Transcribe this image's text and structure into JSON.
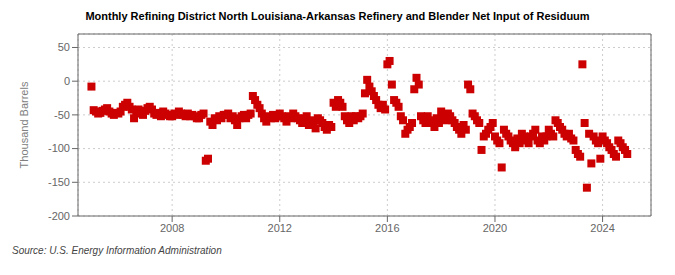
{
  "chart_data": {
    "type": "scatter",
    "title": "Monthly Refining District North Louisiana-Arkansas Refinery and Blender Net Input of Residuum",
    "ylabel": "Thousand Barrels",
    "source": "Source: U.S. Energy Information Administration",
    "color": "#cc0000",
    "marker": "square",
    "grid": true,
    "xlim": [
      2004.5,
      2025.8
    ],
    "xticks": [
      2008,
      2012,
      2016,
      2020,
      2024
    ],
    "ylim": [
      -200,
      70
    ],
    "yticks": [
      -200,
      -150,
      -100,
      -50,
      0,
      50
    ],
    "x": [
      2005.0,
      2005.083,
      2005.167,
      2005.25,
      2005.333,
      2005.417,
      2005.5,
      2005.583,
      2005.667,
      2005.75,
      2005.833,
      2005.917,
      2006.0,
      2006.083,
      2006.167,
      2006.25,
      2006.333,
      2006.417,
      2006.5,
      2006.583,
      2006.667,
      2006.75,
      2006.833,
      2006.917,
      2007.0,
      2007.083,
      2007.167,
      2007.25,
      2007.333,
      2007.417,
      2007.5,
      2007.583,
      2007.667,
      2007.75,
      2007.833,
      2007.917,
      2008.0,
      2008.083,
      2008.167,
      2008.25,
      2008.333,
      2008.417,
      2008.5,
      2008.583,
      2008.667,
      2008.75,
      2008.833,
      2008.917,
      2009.0,
      2009.083,
      2009.167,
      2009.25,
      2009.333,
      2009.417,
      2009.5,
      2009.583,
      2009.667,
      2009.75,
      2009.833,
      2009.917,
      2010.0,
      2010.083,
      2010.167,
      2010.25,
      2010.333,
      2010.417,
      2010.5,
      2010.583,
      2010.667,
      2010.75,
      2010.833,
      2010.917,
      2011.0,
      2011.083,
      2011.167,
      2011.25,
      2011.333,
      2011.417,
      2011.5,
      2011.583,
      2011.667,
      2011.75,
      2011.833,
      2011.917,
      2012.0,
      2012.083,
      2012.167,
      2012.25,
      2012.333,
      2012.417,
      2012.5,
      2012.583,
      2012.667,
      2012.75,
      2012.833,
      2012.917,
      2013.0,
      2013.083,
      2013.167,
      2013.25,
      2013.333,
      2013.417,
      2013.5,
      2013.583,
      2013.667,
      2013.75,
      2013.833,
      2013.917,
      2014.0,
      2014.083,
      2014.167,
      2014.25,
      2014.333,
      2014.417,
      2014.5,
      2014.583,
      2014.667,
      2014.75,
      2014.833,
      2014.917,
      2015.0,
      2015.083,
      2015.167,
      2015.25,
      2015.333,
      2015.417,
      2015.5,
      2015.583,
      2015.667,
      2015.75,
      2015.833,
      2015.917,
      2016.0,
      2016.083,
      2016.167,
      2016.25,
      2016.333,
      2016.417,
      2016.5,
      2016.583,
      2016.667,
      2016.75,
      2016.833,
      2016.917,
      2017.0,
      2017.083,
      2017.167,
      2017.25,
      2017.333,
      2017.417,
      2017.5,
      2017.583,
      2017.667,
      2017.75,
      2017.833,
      2017.917,
      2018.0,
      2018.083,
      2018.167,
      2018.25,
      2018.333,
      2018.417,
      2018.5,
      2018.583,
      2018.667,
      2018.75,
      2018.833,
      2018.917,
      2019.0,
      2019.083,
      2019.167,
      2019.25,
      2019.333,
      2019.417,
      2019.5,
      2019.583,
      2019.667,
      2019.75,
      2019.833,
      2019.917,
      2020.0,
      2020.083,
      2020.167,
      2020.25,
      2020.333,
      2020.417,
      2020.5,
      2020.583,
      2020.667,
      2020.75,
      2020.833,
      2020.917,
      2021.0,
      2021.083,
      2021.167,
      2021.25,
      2021.333,
      2021.417,
      2021.5,
      2021.583,
      2021.667,
      2021.75,
      2021.833,
      2021.917,
      2022.0,
      2022.083,
      2022.167,
      2022.25,
      2022.333,
      2022.417,
      2022.5,
      2022.583,
      2022.667,
      2022.75,
      2022.833,
      2022.917,
      2023.0,
      2023.083,
      2023.167,
      2023.25,
      2023.333,
      2023.417,
      2023.5,
      2023.583,
      2023.667,
      2023.75,
      2023.833,
      2023.917,
      2024.0,
      2024.083,
      2024.167,
      2024.25,
      2024.333,
      2024.417,
      2024.5,
      2024.583,
      2024.667,
      2024.75,
      2024.833,
      2024.917
    ],
    "values": [
      -8,
      -43,
      -45,
      -48,
      -47,
      -44,
      -42,
      -40,
      -45,
      -48,
      -50,
      -47,
      -48,
      -45,
      -38,
      -35,
      -32,
      -38,
      -42,
      -55,
      -45,
      -42,
      -48,
      -50,
      -44,
      -40,
      -38,
      -42,
      -48,
      -50,
      -47,
      -52,
      -45,
      -48,
      -50,
      -52,
      -52,
      -48,
      -50,
      -45,
      -48,
      -50,
      -52,
      -48,
      -52,
      -50,
      -52,
      -55,
      -55,
      -50,
      -48,
      -118,
      -115,
      -60,
      -65,
      -55,
      -58,
      -52,
      -55,
      -50,
      -50,
      -48,
      -55,
      -52,
      -58,
      -65,
      -55,
      -52,
      -50,
      -55,
      -50,
      -48,
      -22,
      -28,
      -35,
      -40,
      -48,
      -55,
      -60,
      -52,
      -55,
      -50,
      -55,
      -52,
      -48,
      -52,
      -55,
      -60,
      -52,
      -55,
      -48,
      -52,
      -55,
      -58,
      -62,
      -55,
      -52,
      -65,
      -58,
      -62,
      -70,
      -55,
      -58,
      -62,
      -68,
      -72,
      -65,
      -68,
      -32,
      -38,
      -28,
      -32,
      -38,
      -52,
      -58,
      -62,
      -52,
      -58,
      -52,
      -55,
      -52,
      -48,
      -18,
      2,
      -8,
      -15,
      -22,
      -28,
      -35,
      -40,
      -35,
      -42,
      25,
      30,
      -5,
      -28,
      -32,
      -38,
      -52,
      -58,
      -78,
      -72,
      -68,
      -62,
      -12,
      5,
      -5,
      -52,
      -58,
      -62,
      -52,
      -58,
      -62,
      -68,
      -55,
      -62,
      -45,
      -52,
      -58,
      -48,
      -52,
      -58,
      -62,
      -68,
      -72,
      -78,
      -65,
      -72,
      -5,
      -12,
      -48,
      -52,
      -58,
      -62,
      -102,
      -82,
      -78,
      -72,
      -68,
      -62,
      -82,
      -88,
      -92,
      -128,
      -72,
      -78,
      -82,
      -88,
      -92,
      -98,
      -85,
      -92,
      -78,
      -82,
      -88,
      -92,
      -82,
      -78,
      -72,
      -88,
      -92,
      -82,
      -88,
      -82,
      -72,
      -78,
      -82,
      -58,
      -62,
      -68,
      -72,
      -78,
      -82,
      -78,
      -85,
      -88,
      -102,
      -108,
      -112,
      25,
      -62,
      -158,
      -78,
      -122,
      -82,
      -88,
      -92,
      -115,
      -82,
      -88,
      -92,
      -98,
      -102,
      -108,
      -112,
      -88,
      -92,
      -98,
      -102,
      -108
    ]
  }
}
